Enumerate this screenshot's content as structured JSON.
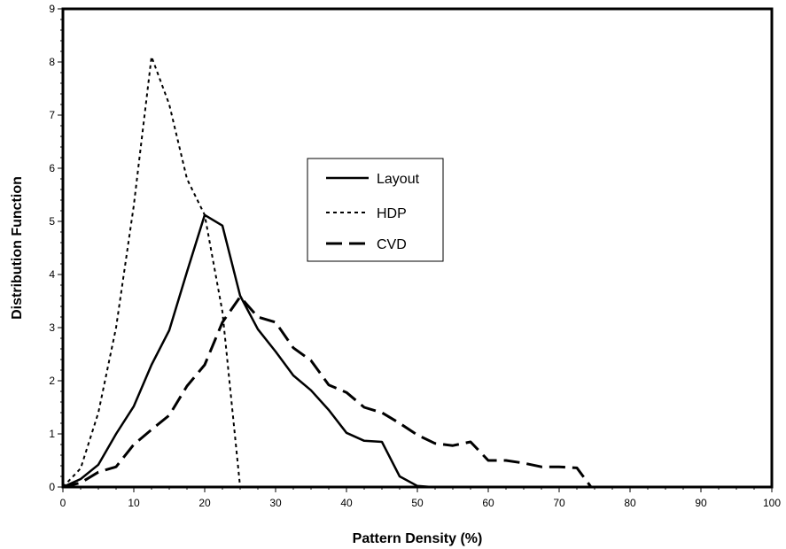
{
  "chart_data": {
    "type": "line",
    "title": "",
    "xlabel": "Pattern Density (%)",
    "ylabel": "Distribution Function",
    "xlim": [
      0,
      100
    ],
    "ylim": [
      0,
      9
    ],
    "x_ticks": [
      0,
      10,
      20,
      30,
      40,
      50,
      60,
      70,
      80,
      90,
      100
    ],
    "y_ticks": [
      0,
      1,
      2,
      3,
      4,
      5,
      6,
      7,
      8,
      9
    ],
    "grid": false,
    "legend_position": "center",
    "series": [
      {
        "name": "Layout",
        "style": "solid",
        "color": "#000000",
        "points": [
          [
            0,
            0
          ],
          [
            2.5,
            0.15
          ],
          [
            5,
            0.42
          ],
          [
            7.5,
            1.0
          ],
          [
            10,
            1.52
          ],
          [
            12.5,
            2.3
          ],
          [
            15,
            2.95
          ],
          [
            17.5,
            4.05
          ],
          [
            20,
            5.12
          ],
          [
            22.5,
            4.92
          ],
          [
            25,
            3.6
          ],
          [
            27.5,
            2.97
          ],
          [
            30,
            2.55
          ],
          [
            32.5,
            2.1
          ],
          [
            35,
            1.82
          ],
          [
            37.5,
            1.45
          ],
          [
            40,
            1.02
          ],
          [
            42.5,
            0.87
          ],
          [
            45,
            0.85
          ],
          [
            47.5,
            0.2
          ],
          [
            50,
            0.02
          ],
          [
            52,
            0
          ]
        ]
      },
      {
        "name": "HDP",
        "style": "dotted",
        "color": "#000000",
        "points": [
          [
            0,
            0
          ],
          [
            2.5,
            0.35
          ],
          [
            5,
            1.4
          ],
          [
            7.5,
            3.0
          ],
          [
            10,
            5.3
          ],
          [
            12.5,
            8.1
          ],
          [
            15,
            7.2
          ],
          [
            17.5,
            5.8
          ],
          [
            20,
            5.12
          ],
          [
            22.5,
            3.3
          ],
          [
            25,
            0
          ]
        ]
      },
      {
        "name": "CVD",
        "style": "dashed",
        "color": "#000000",
        "points": [
          [
            0,
            0
          ],
          [
            2.5,
            0.08
          ],
          [
            5,
            0.28
          ],
          [
            7.5,
            0.38
          ],
          [
            10,
            0.8
          ],
          [
            12.5,
            1.08
          ],
          [
            15,
            1.35
          ],
          [
            17.5,
            1.9
          ],
          [
            20,
            2.3
          ],
          [
            22.5,
            3.1
          ],
          [
            25,
            3.58
          ],
          [
            27.5,
            3.2
          ],
          [
            30,
            3.1
          ],
          [
            32.5,
            2.62
          ],
          [
            35,
            2.38
          ],
          [
            37.5,
            1.92
          ],
          [
            40,
            1.78
          ],
          [
            42.5,
            1.5
          ],
          [
            45,
            1.4
          ],
          [
            47.5,
            1.2
          ],
          [
            50,
            0.98
          ],
          [
            52.5,
            0.82
          ],
          [
            55,
            0.78
          ],
          [
            57.5,
            0.85
          ],
          [
            60,
            0.5
          ],
          [
            62.5,
            0.5
          ],
          [
            65,
            0.45
          ],
          [
            67.5,
            0.38
          ],
          [
            70,
            0.38
          ],
          [
            72.5,
            0.36
          ],
          [
            74.5,
            0
          ]
        ]
      }
    ]
  }
}
